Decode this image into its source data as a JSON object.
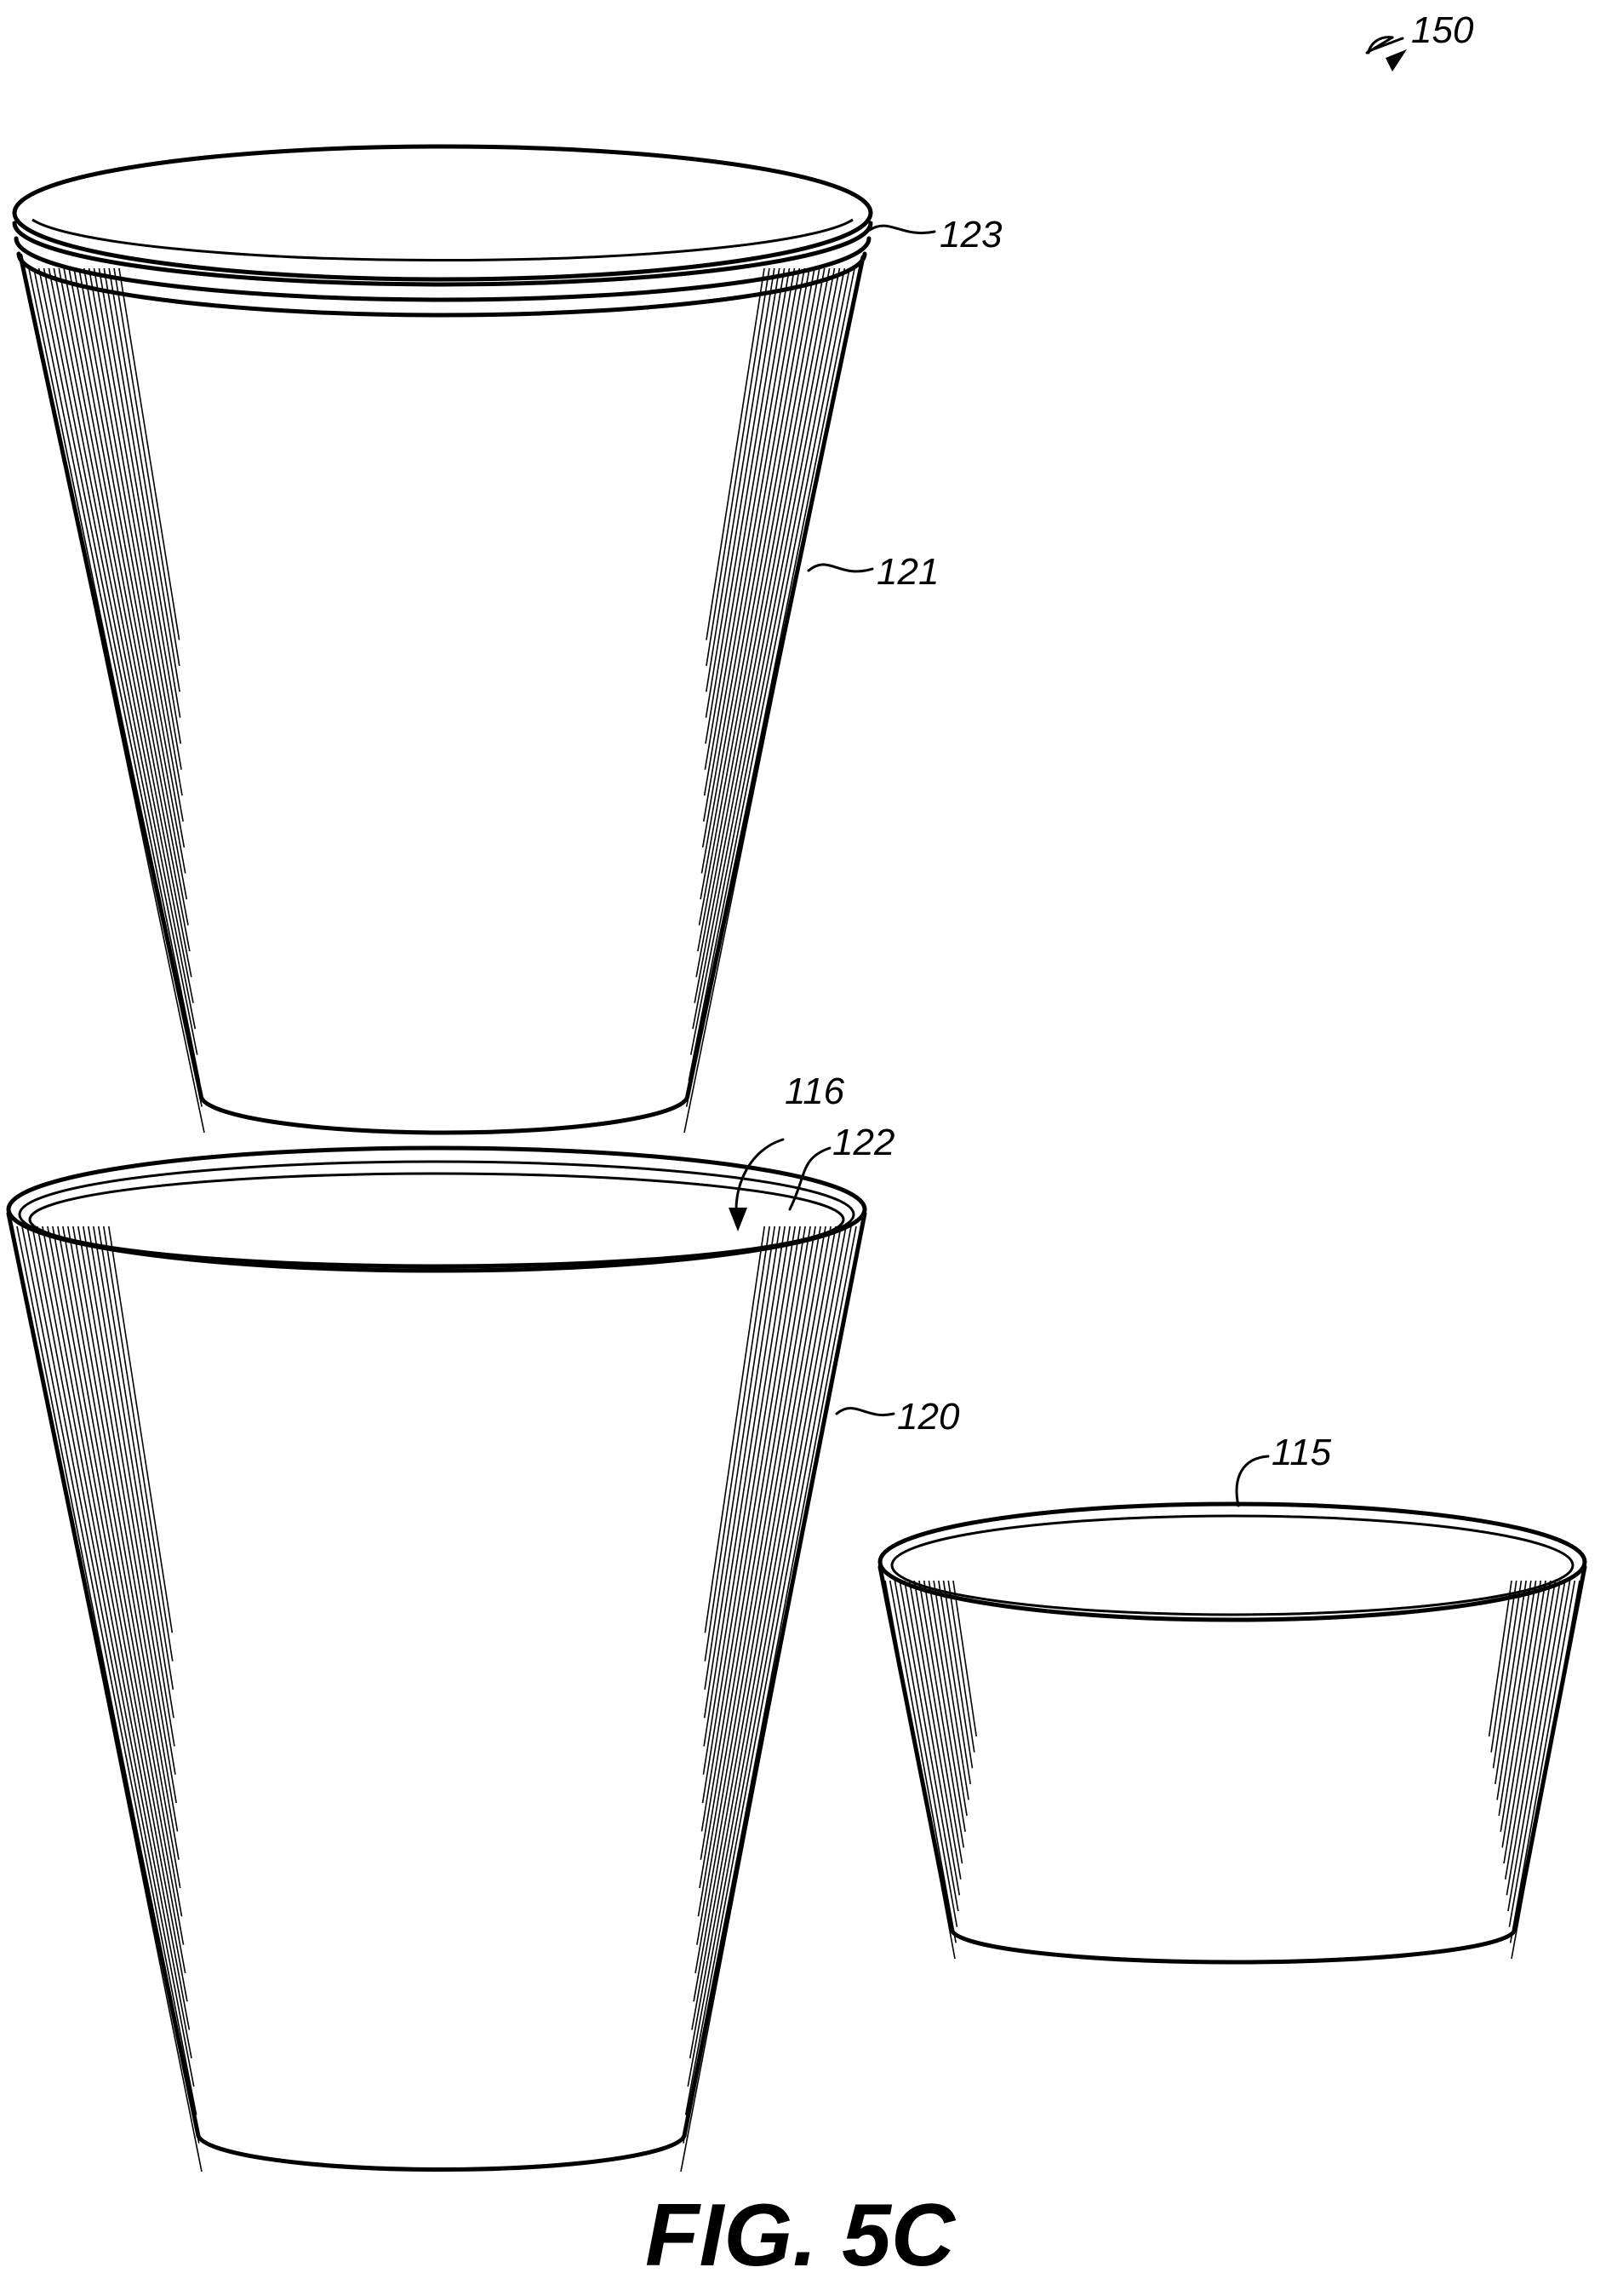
{
  "figure": {
    "title": "FIG. 5C",
    "reference_labels": {
      "assembly": "150",
      "upper_cup_rim": "123",
      "upper_cup_wall": "121",
      "cavity": "116",
      "lower_cup_rim": "122",
      "lower_cup_wall": "120",
      "bowl": "115"
    }
  }
}
